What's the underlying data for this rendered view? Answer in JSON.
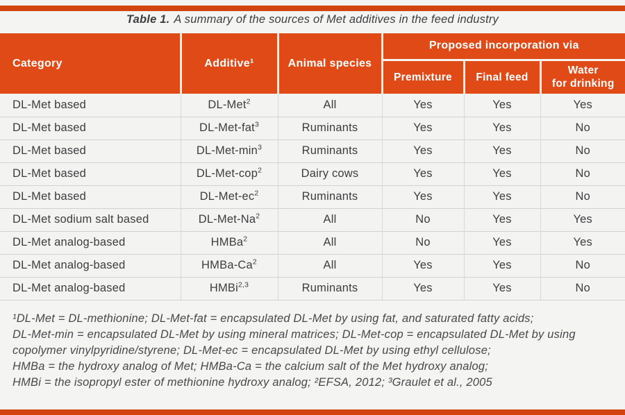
{
  "accents": {
    "bar_color": "#d2450e",
    "header_color": "#e04a17"
  },
  "title": {
    "prefix": "Table 1.",
    "rest": "A summary of the sources of Met additives in the feed industry"
  },
  "table": {
    "headers": {
      "category": "Category",
      "additive": "Additive¹",
      "species": "Animal species",
      "proposed": "Proposed incorporation via",
      "premixture": "Premixture",
      "final_feed": "Final feed",
      "water_line1": "Water",
      "water_line2": "for drinking"
    },
    "rows": [
      {
        "category": "DL-Met based",
        "additive": "DL-Met",
        "additive_sup": "2",
        "species": "All",
        "premixture": "Yes",
        "final_feed": "Yes",
        "water": "Yes"
      },
      {
        "category": "DL-Met based",
        "additive": "DL-Met-fat",
        "additive_sup": "3",
        "species": "Ruminants",
        "premixture": "Yes",
        "final_feed": "Yes",
        "water": "No"
      },
      {
        "category": "DL-Met based",
        "additive": "DL-Met-min",
        "additive_sup": "3",
        "species": "Ruminants",
        "premixture": "Yes",
        "final_feed": "Yes",
        "water": "No"
      },
      {
        "category": "DL-Met based",
        "additive": "DL-Met-cop",
        "additive_sup": "2",
        "species": "Dairy cows",
        "premixture": "Yes",
        "final_feed": "Yes",
        "water": "No"
      },
      {
        "category": "DL-Met based",
        "additive": "DL-Met-ec",
        "additive_sup": "2",
        "species": "Ruminants",
        "premixture": "Yes",
        "final_feed": "Yes",
        "water": "No"
      },
      {
        "category": "DL-Met sodium salt based",
        "additive": "DL-Met-Na",
        "additive_sup": "2",
        "species": "All",
        "premixture": "No",
        "final_feed": "Yes",
        "water": "Yes"
      },
      {
        "category": "DL-Met analog-based",
        "additive": "HMBa",
        "additive_sup": "2",
        "species": "All",
        "premixture": "No",
        "final_feed": "Yes",
        "water": "Yes"
      },
      {
        "category": "DL-Met analog-based",
        "additive": "HMBa-Ca",
        "additive_sup": "2",
        "species": "All",
        "premixture": "Yes",
        "final_feed": "Yes",
        "water": "No"
      },
      {
        "category": "DL-Met analog-based",
        "additive": "HMBi",
        "additive_sup": "2,3",
        "species": "Ruminants",
        "premixture": "Yes",
        "final_feed": "Yes",
        "water": "No"
      }
    ]
  },
  "footnotes": {
    "lines": [
      "¹DL-Met = DL-methionine; DL-Met-fat = encapsulated DL-Met by using fat, and saturated fatty acids;",
      "DL-Met-min = encapsulated DL-Met by using mineral matrices; DL-Met-cop = encapsulated DL-Met by using",
      "copolymer vinylpyridine/styrene; DL-Met-ec = encapsulated DL-Met by using ethyl cellulose;",
      "HMBa = the hydroxy analog of Met; HMBa-Ca = the calcium salt of the Met hydroxy analog;",
      "HMBi = the isopropyl ester of methionine hydroxy analog; ²EFSA, 2012; ³Graulet et al., 2005"
    ]
  }
}
